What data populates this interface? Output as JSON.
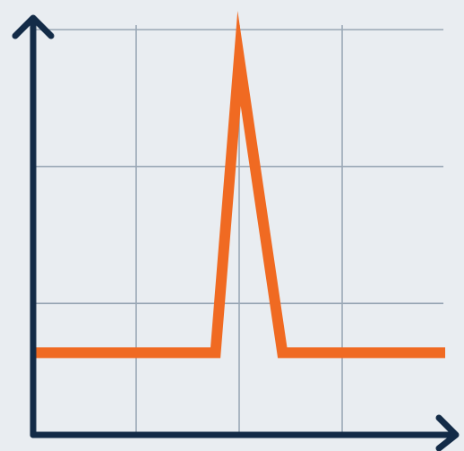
{
  "colors": {
    "background": "#e9edf1",
    "grid": "#9aa8b6",
    "axis": "#132b47",
    "series": "#f06a22"
  },
  "chart_data": {
    "type": "line",
    "title": "",
    "xlabel": "",
    "ylabel": "",
    "grid": true,
    "legend": "none",
    "xlim": [
      0,
      4
    ],
    "ylim": [
      0,
      3
    ],
    "x_gridlines": [
      1,
      2,
      3
    ],
    "y_gridlines": [
      1,
      2,
      3
    ],
    "series": [
      {
        "x": [
          0,
          1.77,
          2.0,
          2.42,
          4.0
        ],
        "values": [
          0.6,
          0.6,
          2.75,
          0.6,
          0.6
        ]
      }
    ]
  }
}
